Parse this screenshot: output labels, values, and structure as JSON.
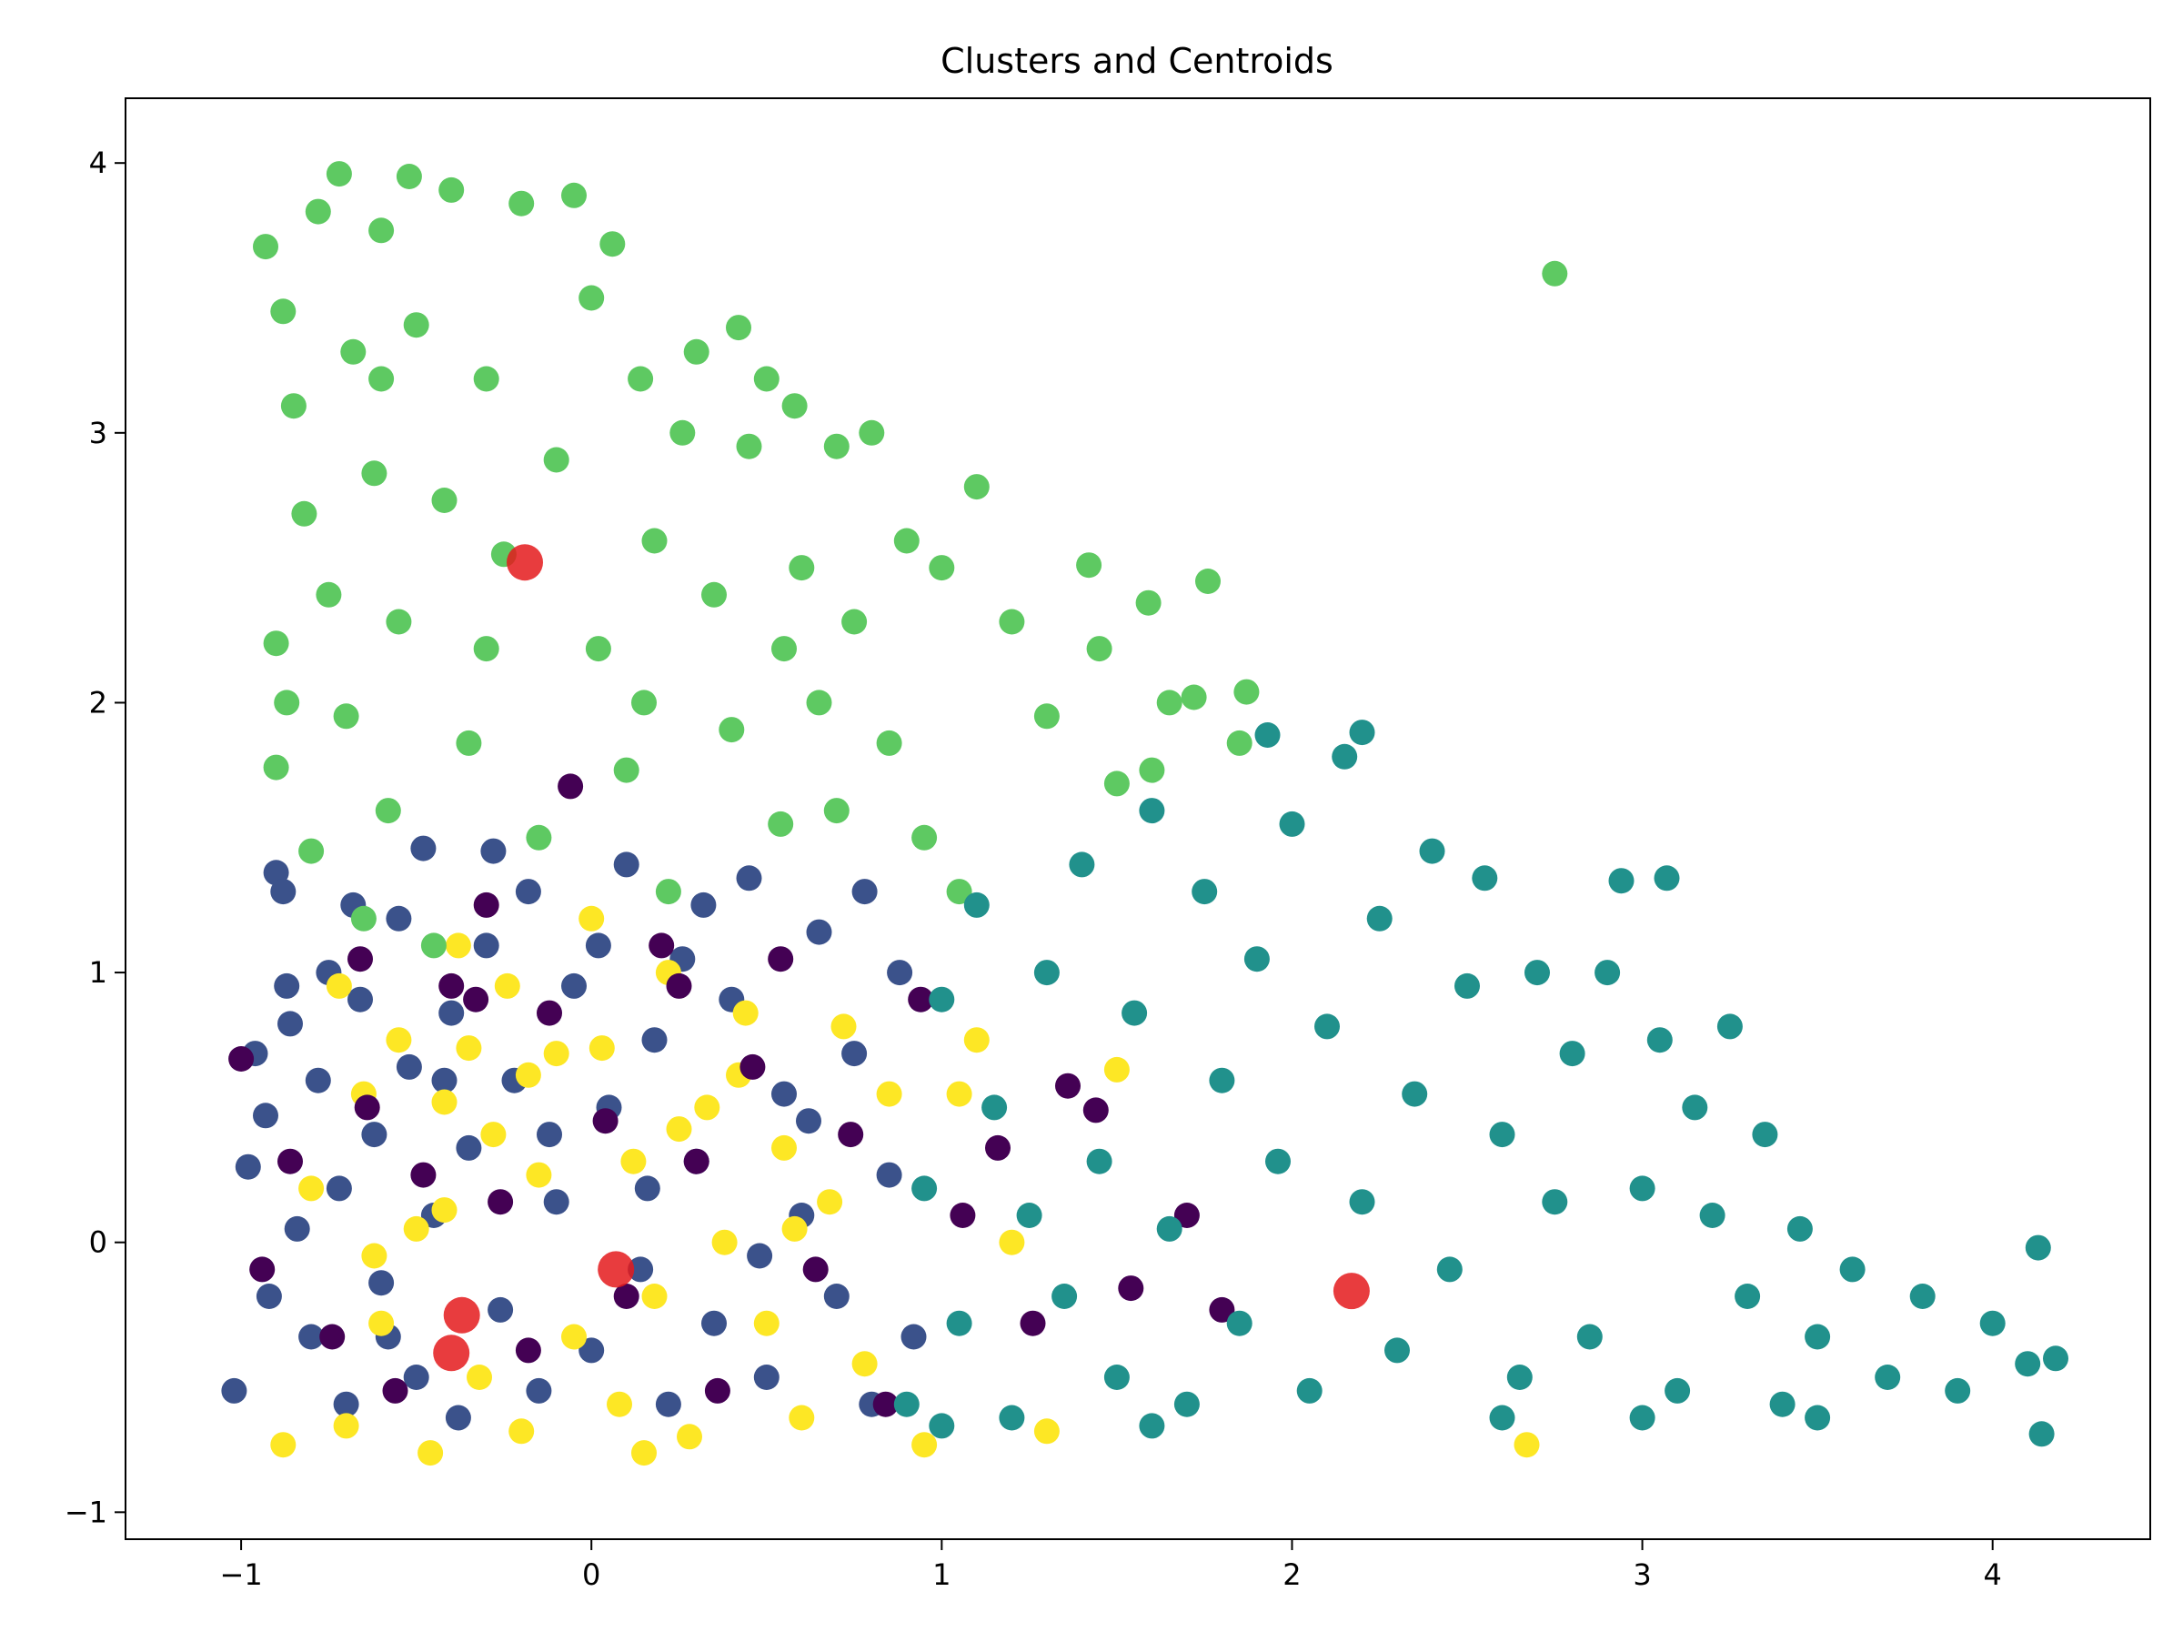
{
  "chart_data": {
    "type": "scatter",
    "title": "Clusters and Centroids",
    "xlabel": "",
    "ylabel": "",
    "xlim": [
      -1.33,
      4.45
    ],
    "ylim": [
      -1.1,
      4.24
    ],
    "xticks": [
      -1,
      0,
      1,
      2,
      3,
      4
    ],
    "yticks": [
      -1,
      0,
      1,
      2,
      3,
      4
    ],
    "xtick_labels": [
      "−1",
      "0",
      "1",
      "2",
      "3",
      "4"
    ],
    "ytick_labels": [
      "−1",
      "0",
      "1",
      "2",
      "3",
      "4"
    ],
    "grid": false,
    "legend": "none",
    "colormap": "viridis",
    "cluster_colors": {
      "0": "#440154",
      "1": "#3b528b",
      "2": "#21918c",
      "3": "#5ec962",
      "4": "#fde725"
    },
    "centroid_color": "#e41a1c",
    "series": [
      {
        "cluster": 1,
        "color": "#3b528b",
        "points": [
          [
            -1.02,
            -0.55
          ],
          [
            -0.98,
            0.28
          ],
          [
            -0.96,
            0.7
          ],
          [
            -0.93,
            0.47
          ],
          [
            -0.9,
            1.37
          ],
          [
            -0.88,
            1.3
          ],
          [
            -0.86,
            0.81
          ],
          [
            -0.84,
            0.05
          ],
          [
            -0.8,
            -0.35
          ],
          [
            -0.78,
            0.6
          ],
          [
            -0.75,
            1.0
          ],
          [
            -0.72,
            0.2
          ],
          [
            -0.7,
            -0.6
          ],
          [
            -0.66,
            0.9
          ],
          [
            -0.62,
            0.4
          ],
          [
            -0.6,
            -0.15
          ],
          [
            -0.55,
            1.2
          ],
          [
            -0.52,
            0.65
          ],
          [
            -0.5,
            -0.5
          ],
          [
            -0.48,
            1.46
          ],
          [
            -0.45,
            0.1
          ],
          [
            -0.4,
            0.85
          ],
          [
            -0.38,
            -0.65
          ],
          [
            -0.35,
            0.35
          ],
          [
            -0.3,
            1.1
          ],
          [
            -0.26,
            -0.25
          ],
          [
            -0.22,
            0.6
          ],
          [
            -0.18,
            1.3
          ],
          [
            -0.15,
            -0.55
          ],
          [
            -0.1,
            0.15
          ],
          [
            -0.05,
            0.95
          ],
          [
            0.0,
            -0.4
          ],
          [
            0.05,
            0.5
          ],
          [
            0.1,
            1.4
          ],
          [
            0.14,
            -0.1
          ],
          [
            0.18,
            0.75
          ],
          [
            0.22,
            -0.6
          ],
          [
            0.26,
            1.05
          ],
          [
            0.3,
            0.3
          ],
          [
            0.35,
            -0.3
          ],
          [
            0.4,
            0.9
          ],
          [
            0.45,
            1.35
          ],
          [
            0.5,
            -0.5
          ],
          [
            0.55,
            0.55
          ],
          [
            0.6,
            0.1
          ],
          [
            0.65,
            1.15
          ],
          [
            0.7,
            -0.2
          ],
          [
            0.75,
            0.7
          ],
          [
            0.8,
            -0.6
          ],
          [
            0.85,
            0.25
          ],
          [
            0.88,
            1.0
          ],
          [
            -0.92,
            -0.2
          ],
          [
            -0.87,
            0.95
          ],
          [
            -0.68,
            1.25
          ],
          [
            -0.58,
            -0.35
          ],
          [
            -0.42,
            0.6
          ],
          [
            -0.28,
            1.45
          ],
          [
            -0.12,
            0.4
          ],
          [
            0.02,
            1.1
          ],
          [
            0.16,
            0.2
          ],
          [
            0.32,
            1.25
          ],
          [
            0.48,
            -0.05
          ],
          [
            0.62,
            0.45
          ],
          [
            0.78,
            1.3
          ],
          [
            0.92,
            -0.35
          ]
        ]
      },
      {
        "cluster": 4,
        "color": "#fde725",
        "points": [
          [
            -0.88,
            -0.75
          ],
          [
            -0.8,
            0.2
          ],
          [
            -0.72,
            0.95
          ],
          [
            -0.7,
            -0.68
          ],
          [
            -0.65,
            0.55
          ],
          [
            -0.6,
            -0.3
          ],
          [
            -0.55,
            0.75
          ],
          [
            -0.5,
            0.05
          ],
          [
            -0.46,
            -0.78
          ],
          [
            -0.42,
            0.52
          ],
          [
            -0.38,
            1.1
          ],
          [
            -0.35,
            0.72
          ],
          [
            -0.32,
            -0.5
          ],
          [
            -0.28,
            0.4
          ],
          [
            -0.24,
            0.95
          ],
          [
            -0.2,
            -0.7
          ],
          [
            -0.15,
            0.25
          ],
          [
            -0.1,
            0.7
          ],
          [
            -0.05,
            -0.35
          ],
          [
            0.0,
            1.2
          ],
          [
            0.03,
            0.72
          ],
          [
            0.08,
            -0.6
          ],
          [
            0.12,
            0.3
          ],
          [
            0.18,
            -0.2
          ],
          [
            0.22,
            1.0
          ],
          [
            0.28,
            -0.72
          ],
          [
            0.33,
            0.5
          ],
          [
            0.38,
            0.0
          ],
          [
            0.44,
            0.85
          ],
          [
            0.5,
            -0.3
          ],
          [
            0.55,
            0.35
          ],
          [
            0.6,
            -0.65
          ],
          [
            0.68,
            0.15
          ],
          [
            0.72,
            0.8
          ],
          [
            0.78,
            -0.45
          ],
          [
            0.85,
            0.55
          ],
          [
            0.95,
            -0.75
          ],
          [
            1.05,
            0.55
          ],
          [
            1.1,
            0.75
          ],
          [
            1.2,
            0.0
          ],
          [
            1.3,
            -0.7
          ],
          [
            1.5,
            0.64
          ],
          [
            2.67,
            -0.75
          ],
          [
            -0.42,
            0.12
          ],
          [
            0.15,
            -0.78
          ],
          [
            0.42,
            0.62
          ],
          [
            -0.62,
            -0.05
          ],
          [
            0.25,
            0.42
          ],
          [
            -0.18,
            0.62
          ],
          [
            0.58,
            0.05
          ]
        ]
      },
      {
        "cluster": 0,
        "color": "#440154",
        "points": [
          [
            -1.0,
            0.68
          ],
          [
            -0.94,
            -0.1
          ],
          [
            -0.86,
            0.3
          ],
          [
            -0.74,
            -0.35
          ],
          [
            -0.66,
            1.05
          ],
          [
            -0.64,
            0.5
          ],
          [
            -0.56,
            -0.55
          ],
          [
            -0.48,
            0.25
          ],
          [
            -0.4,
            0.95
          ],
          [
            -0.33,
            0.9
          ],
          [
            -0.3,
            1.25
          ],
          [
            -0.26,
            0.15
          ],
          [
            -0.18,
            -0.4
          ],
          [
            -0.12,
            0.85
          ],
          [
            -0.06,
            1.69
          ],
          [
            0.04,
            0.45
          ],
          [
            0.1,
            -0.2
          ],
          [
            0.2,
            1.1
          ],
          [
            0.3,
            0.3
          ],
          [
            0.36,
            -0.55
          ],
          [
            0.46,
            0.65
          ],
          [
            0.54,
            1.05
          ],
          [
            0.64,
            -0.1
          ],
          [
            0.74,
            0.4
          ],
          [
            0.84,
            -0.6
          ],
          [
            0.94,
            0.9
          ],
          [
            1.06,
            0.1
          ],
          [
            1.16,
            0.35
          ],
          [
            1.26,
            -0.3
          ],
          [
            1.36,
            0.58
          ],
          [
            1.44,
            0.49
          ],
          [
            1.54,
            -0.17
          ],
          [
            1.7,
            0.1
          ],
          [
            1.8,
            -0.25
          ],
          [
            0.25,
            0.95
          ]
        ]
      },
      {
        "cluster": 3,
        "color": "#5ec962",
        "points": [
          [
            -0.93,
            3.69
          ],
          [
            -0.88,
            3.45
          ],
          [
            -0.85,
            3.1
          ],
          [
            -0.82,
            2.7
          ],
          [
            -0.9,
            2.22
          ],
          [
            -0.87,
            2.0
          ],
          [
            -0.9,
            1.76
          ],
          [
            -0.8,
            1.45
          ],
          [
            -0.78,
            3.82
          ],
          [
            -0.75,
            2.4
          ],
          [
            -0.72,
            3.96
          ],
          [
            -0.7,
            1.95
          ],
          [
            -0.68,
            3.3
          ],
          [
            -0.65,
            1.2
          ],
          [
            -0.62,
            2.85
          ],
          [
            -0.6,
            3.75
          ],
          [
            -0.58,
            1.6
          ],
          [
            -0.55,
            2.3
          ],
          [
            -0.52,
            3.95
          ],
          [
            -0.5,
            3.4
          ],
          [
            -0.45,
            1.1
          ],
          [
            -0.42,
            2.75
          ],
          [
            -0.4,
            3.9
          ],
          [
            -0.35,
            1.85
          ],
          [
            -0.3,
            3.2
          ],
          [
            -0.25,
            2.55
          ],
          [
            -0.2,
            3.85
          ],
          [
            -0.15,
            1.5
          ],
          [
            -0.1,
            2.9
          ],
          [
            -0.05,
            3.88
          ],
          [
            0.0,
            3.5
          ],
          [
            0.02,
            2.2
          ],
          [
            0.06,
            3.7
          ],
          [
            0.1,
            1.75
          ],
          [
            0.14,
            3.2
          ],
          [
            0.18,
            2.6
          ],
          [
            0.22,
            1.3
          ],
          [
            0.26,
            3.0
          ],
          [
            0.3,
            3.3
          ],
          [
            0.35,
            2.4
          ],
          [
            0.4,
            1.9
          ],
          [
            0.42,
            3.39
          ],
          [
            0.45,
            2.95
          ],
          [
            0.5,
            3.2
          ],
          [
            0.54,
            1.55
          ],
          [
            0.58,
            3.1
          ],
          [
            0.6,
            2.5
          ],
          [
            0.65,
            2.0
          ],
          [
            0.7,
            2.95
          ],
          [
            0.75,
            2.3
          ],
          [
            0.8,
            3.0
          ],
          [
            0.85,
            1.85
          ],
          [
            0.9,
            2.6
          ],
          [
            0.95,
            1.5
          ],
          [
            1.0,
            2.5
          ],
          [
            1.05,
            1.3
          ],
          [
            1.1,
            2.8
          ],
          [
            1.2,
            2.3
          ],
          [
            1.3,
            1.95
          ],
          [
            1.42,
            2.51
          ],
          [
            1.45,
            2.2
          ],
          [
            1.5,
            1.7
          ],
          [
            1.59,
            2.37
          ],
          [
            1.6,
            1.75
          ],
          [
            1.65,
            2.0
          ],
          [
            1.72,
            2.02
          ],
          [
            1.76,
            2.45
          ],
          [
            1.85,
            1.85
          ],
          [
            1.87,
            2.04
          ],
          [
            2.75,
            3.59
          ],
          [
            -0.6,
            3.2
          ],
          [
            -0.3,
            2.2
          ],
          [
            0.15,
            2.0
          ],
          [
            0.7,
            1.6
          ],
          [
            0.55,
            2.2
          ]
        ]
      },
      {
        "cluster": 2,
        "color": "#21918c",
        "points": [
          [
            0.9,
            -0.6
          ],
          [
            0.95,
            0.2
          ],
          [
            1.0,
            0.9
          ],
          [
            1.05,
            -0.3
          ],
          [
            1.1,
            1.25
          ],
          [
            1.15,
            0.5
          ],
          [
            1.2,
            -0.65
          ],
          [
            1.25,
            0.1
          ],
          [
            1.3,
            1.0
          ],
          [
            1.35,
            -0.2
          ],
          [
            1.4,
            1.4
          ],
          [
            1.45,
            0.3
          ],
          [
            1.5,
            -0.5
          ],
          [
            1.55,
            0.85
          ],
          [
            1.6,
            1.6
          ],
          [
            1.65,
            0.05
          ],
          [
            1.7,
            -0.6
          ],
          [
            1.75,
            1.3
          ],
          [
            1.8,
            0.6
          ],
          [
            1.85,
            -0.3
          ],
          [
            1.9,
            1.05
          ],
          [
            1.93,
            1.88
          ],
          [
            1.96,
            0.3
          ],
          [
            2.0,
            1.55
          ],
          [
            2.05,
            -0.55
          ],
          [
            2.1,
            0.8
          ],
          [
            2.15,
            1.8
          ],
          [
            2.2,
            0.15
          ],
          [
            2.25,
            1.2
          ],
          [
            2.3,
            -0.4
          ],
          [
            2.35,
            0.55
          ],
          [
            2.4,
            1.45
          ],
          [
            2.45,
            -0.1
          ],
          [
            2.5,
            0.95
          ],
          [
            2.55,
            1.35
          ],
          [
            2.6,
            0.4
          ],
          [
            2.65,
            -0.5
          ],
          [
            2.7,
            1.0
          ],
          [
            2.75,
            0.15
          ],
          [
            2.8,
            0.7
          ],
          [
            2.85,
            -0.35
          ],
          [
            2.9,
            1.0
          ],
          [
            2.94,
            1.34
          ],
          [
            3.0,
            0.2
          ],
          [
            3.05,
            0.75
          ],
          [
            3.07,
            1.35
          ],
          [
            3.1,
            -0.55
          ],
          [
            3.15,
            0.5
          ],
          [
            3.2,
            0.1
          ],
          [
            3.25,
            0.8
          ],
          [
            3.3,
            -0.2
          ],
          [
            3.35,
            0.4
          ],
          [
            3.4,
            -0.6
          ],
          [
            3.45,
            0.05
          ],
          [
            3.5,
            -0.35
          ],
          [
            3.6,
            -0.1
          ],
          [
            3.7,
            -0.5
          ],
          [
            3.8,
            -0.2
          ],
          [
            3.9,
            -0.55
          ],
          [
            4.0,
            -0.3
          ],
          [
            4.1,
            -0.45
          ],
          [
            4.13,
            -0.02
          ],
          [
            4.14,
            -0.71
          ],
          [
            4.18,
            -0.43
          ],
          [
            2.2,
            1.89
          ],
          [
            2.6,
            -0.65
          ],
          [
            3.0,
            -0.65
          ],
          [
            3.5,
            -0.65
          ],
          [
            1.0,
            -0.68
          ],
          [
            1.6,
            -0.68
          ]
        ]
      }
    ],
    "centroids": [
      [
        -0.19,
        2.52
      ],
      [
        2.17,
        -0.18
      ],
      [
        0.07,
        -0.1
      ],
      [
        -0.37,
        -0.27
      ],
      [
        -0.4,
        -0.41
      ]
    ]
  }
}
